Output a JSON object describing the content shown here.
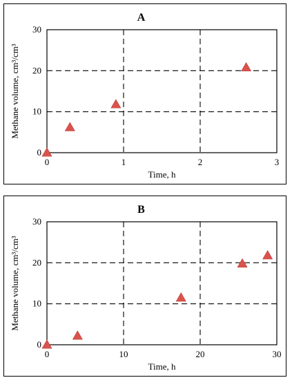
{
  "chart_data": [
    {
      "type": "scatter",
      "title": "A",
      "xlabel": "Time, h",
      "ylabel": "Methane volume, cm³/cm³",
      "xlim": [
        0,
        3
      ],
      "ylim": [
        0,
        30
      ],
      "xticks": [
        0,
        1,
        2,
        3
      ],
      "yticks": [
        0,
        10,
        20,
        30
      ],
      "grid": "dashed",
      "marker": "triangle",
      "marker_color": "#d9534f",
      "x": [
        0,
        0.3,
        0.9,
        2.6
      ],
      "y": [
        0,
        6.2,
        11.8,
        20.8
      ]
    },
    {
      "type": "scatter",
      "title": "B",
      "xlabel": "Time, h",
      "ylabel": "Methane volume, cm³/cm³",
      "xlim": [
        0,
        30
      ],
      "ylim": [
        0,
        30
      ],
      "xticks": [
        0,
        10,
        20,
        30
      ],
      "yticks": [
        0,
        10,
        20,
        30
      ],
      "grid": "dashed",
      "marker": "triangle",
      "marker_color": "#d9534f",
      "x": [
        0,
        4,
        17.5,
        25.5,
        28.8
      ],
      "y": [
        0,
        2.2,
        11.5,
        19.8,
        21.8
      ]
    }
  ]
}
